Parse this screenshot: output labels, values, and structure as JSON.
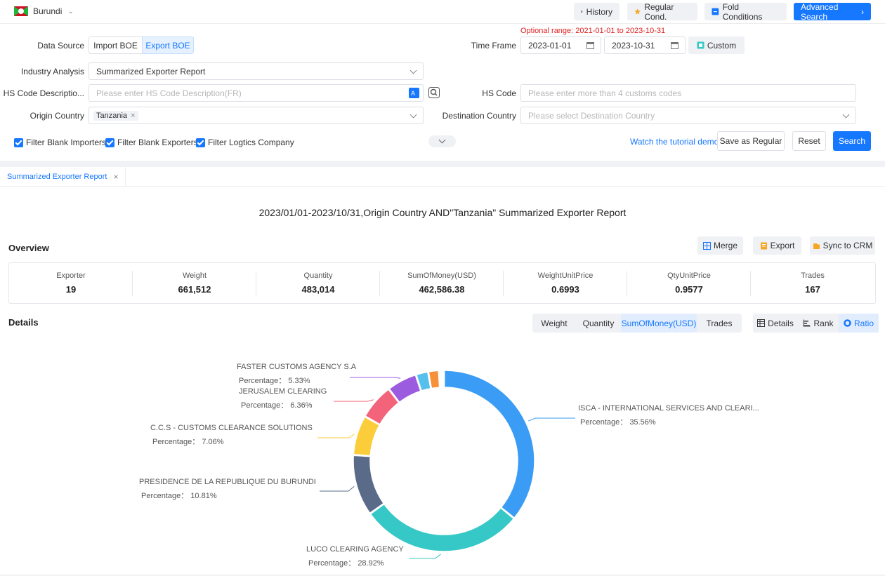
{
  "topbar": {
    "country": "Burundi",
    "history_label": "History",
    "regular_label": "Regular Cond.",
    "fold_label": "Fold Conditions",
    "advanced_label": "Advanced Search"
  },
  "form": {
    "optional_range": "Optional range:  2021-01-01 to 2023-10-31",
    "data_source_label": "Data Source",
    "import_boe": "Import BOE",
    "export_boe": "Export BOE",
    "time_frame_label": "Time Frame",
    "date_start": "2023-01-01",
    "date_end": "2023-10-31",
    "custom_label": "Custom",
    "industry_label": "Industry Analysis",
    "industry_value": "Summarized Exporter Report",
    "hs_desc_label": "HS Code Descriptio...",
    "hs_desc_placeholder": "Please enter HS Code Description(FR)",
    "hs_code_label": "HS Code",
    "hs_code_placeholder": "Please enter more than 4 customs codes",
    "origin_label": "Origin Country",
    "origin_tag": "Tanzania",
    "dest_label": "Destination Country",
    "dest_placeholder": "Please select Destination Country",
    "filter_importers": "Filter Blank Importers",
    "filter_exporters": "Filter Blank Exporters",
    "filter_logistics": "Filter Logtics Company",
    "tutorial_link": "Watch the tutorial demo",
    "save_regular": "Save as Regular",
    "reset": "Reset",
    "search": "Search"
  },
  "tab": {
    "label": "Summarized Exporter Report",
    "close": "×"
  },
  "report": {
    "title": "2023/01/01-2023/10/31,Origin Country AND\"Tanzania\" Summarized Exporter Report",
    "overview_title": "Overview",
    "merge": "Merge",
    "export": "Export",
    "sync": "Sync to CRM",
    "details_title": "Details"
  },
  "overview": [
    {
      "key": "Exporter",
      "value": "19"
    },
    {
      "key": "Weight",
      "value": "661,512"
    },
    {
      "key": "Quantity",
      "value": "483,014"
    },
    {
      "key": "SumOfMoney(USD)",
      "value": "462,586.38"
    },
    {
      "key": "WeightUnitPrice",
      "value": "0.6993"
    },
    {
      "key": "QtyUnitPrice",
      "value": "0.9577"
    },
    {
      "key": "Trades",
      "value": "167"
    }
  ],
  "metric_tabs": [
    "Weight",
    "Quantity",
    "SumOfMoney(USD)",
    "Trades"
  ],
  "view_tabs": [
    "Details",
    "Rank",
    "Ratio"
  ],
  "chart_data": {
    "type": "pie",
    "donut": true,
    "start_angle_deg": 0,
    "direction": "clockwise",
    "percentage_prefix": "Percentage：",
    "slices": [
      {
        "name": "ISCA - INTERNATIONAL SERVICES AND CLEARI...",
        "value": 35.56,
        "color": "#3a9cf5",
        "label": true
      },
      {
        "name": "LUCO CLEARING AGENCY",
        "value": 28.92,
        "color": "#36c8c6",
        "label": true
      },
      {
        "name": "PRESIDENCE DE LA REPUBLIQUE DU BURUNDI",
        "value": 10.81,
        "color": "#5a6b8a",
        "label": true
      },
      {
        "name": "C.C.S - CUSTOMS CLEARANCE SOLUTIONS",
        "value": 7.06,
        "color": "#fbcd3a",
        "label": true
      },
      {
        "name": "JERUSALEM CLEARING",
        "value": 6.36,
        "color": "#f3647a",
        "label": true
      },
      {
        "name": "FASTER CUSTOMS AGENCY S.A",
        "value": 5.33,
        "color": "#9c5ce0",
        "label": true
      },
      {
        "name": "",
        "value": 2.2,
        "color": "#55c0ee",
        "label": false
      },
      {
        "name": "",
        "value": 1.9,
        "color": "#f7903a",
        "label": false
      },
      {
        "name": "",
        "value": 0.4,
        "color": "#a0d468",
        "label": false
      },
      {
        "name": "",
        "value": 0.3,
        "color": "#c27cdd",
        "label": false
      },
      {
        "name": "",
        "value": 0.16,
        "color": "#e8a24e",
        "label": false
      }
    ]
  }
}
